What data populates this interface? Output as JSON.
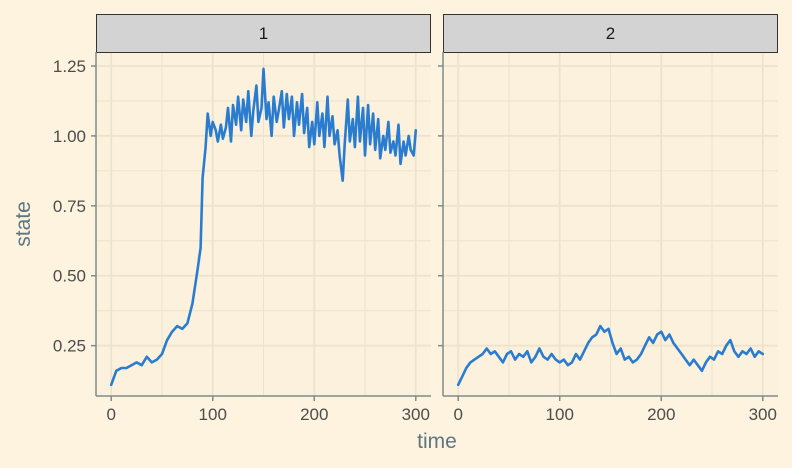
{
  "chart_data": {
    "type": "line",
    "layout": "facet",
    "xlabel": "time",
    "ylabel": "state",
    "xlim": [
      -15,
      315
    ],
    "ylim": [
      0.07,
      1.3
    ],
    "x_ticks": [
      0,
      100,
      200,
      300
    ],
    "x_tick_labels": [
      "0",
      "100",
      "200",
      "300"
    ],
    "y_ticks": [
      0.25,
      0.5,
      0.75,
      1.0,
      1.25
    ],
    "y_tick_labels": [
      "0.25",
      "0.50",
      "0.75",
      "1.00",
      "1.25"
    ],
    "grid": true,
    "legend": "none",
    "colors": {
      "background": "#fdf3df",
      "panel": "#fcf1dd",
      "grid": "#ede3cc",
      "strip": "#d3d3d3",
      "line": "#2a7cd0",
      "axis": "#7f8c8d"
    },
    "panels": [
      {
        "label": "1",
        "x": [
          0,
          5,
          10,
          15,
          20,
          25,
          30,
          35,
          40,
          45,
          50,
          55,
          60,
          65,
          70,
          75,
          80,
          85,
          88,
          90,
          93,
          95,
          98,
          100,
          103,
          105,
          108,
          110,
          113,
          115,
          118,
          120,
          123,
          125,
          128,
          130,
          133,
          135,
          138,
          140,
          143,
          145,
          148,
          150,
          153,
          155,
          158,
          160,
          163,
          165,
          168,
          170,
          173,
          175,
          178,
          180,
          183,
          185,
          188,
          190,
          193,
          195,
          198,
          200,
          203,
          205,
          208,
          210,
          213,
          215,
          218,
          220,
          223,
          225,
          228,
          230,
          233,
          235,
          238,
          240,
          243,
          245,
          248,
          250,
          253,
          255,
          258,
          260,
          263,
          265,
          268,
          270,
          273,
          275,
          278,
          280,
          283,
          285,
          288,
          290,
          293,
          295,
          298,
          300
        ],
        "y": [
          0.11,
          0.16,
          0.17,
          0.17,
          0.18,
          0.19,
          0.18,
          0.21,
          0.19,
          0.2,
          0.22,
          0.27,
          0.3,
          0.32,
          0.31,
          0.33,
          0.4,
          0.52,
          0.6,
          0.85,
          0.96,
          1.08,
          1.0,
          1.05,
          1.02,
          0.98,
          1.04,
          0.99,
          1.03,
          1.1,
          0.98,
          1.11,
          1.04,
          1.14,
          1.02,
          1.13,
          1.05,
          1.16,
          1.0,
          1.09,
          1.18,
          1.05,
          1.1,
          1.24,
          1.06,
          1.12,
          1.0,
          1.14,
          1.05,
          1.09,
          1.16,
          1.03,
          1.15,
          1.06,
          1.14,
          1.0,
          1.12,
          1.04,
          1.15,
          1.01,
          1.1,
          0.96,
          1.05,
          0.97,
          1.12,
          1.0,
          1.08,
          0.96,
          1.14,
          1.0,
          1.07,
          0.97,
          1.02,
          0.93,
          0.84,
          0.97,
          1.13,
          0.98,
          1.06,
          0.96,
          1.14,
          0.98,
          1.1,
          0.93,
          1.11,
          0.97,
          1.08,
          0.95,
          1.06,
          0.92,
          1.0,
          0.95,
          1.05,
          0.94,
          0.98,
          0.93,
          1.04,
          0.9,
          0.98,
          0.93,
          1.0,
          0.95,
          0.93,
          1.02
        ]
      },
      {
        "label": "2",
        "x": [
          0,
          4,
          8,
          12,
          16,
          20,
          24,
          28,
          32,
          36,
          40,
          44,
          48,
          52,
          56,
          60,
          64,
          68,
          72,
          76,
          80,
          84,
          88,
          92,
          96,
          100,
          104,
          108,
          112,
          116,
          120,
          124,
          128,
          132,
          136,
          140,
          144,
          148,
          152,
          156,
          160,
          164,
          168,
          172,
          176,
          180,
          184,
          188,
          192,
          196,
          200,
          204,
          208,
          212,
          216,
          220,
          224,
          228,
          232,
          236,
          240,
          244,
          248,
          252,
          256,
          260,
          264,
          268,
          272,
          276,
          280,
          284,
          288,
          292,
          296,
          300
        ],
        "y": [
          0.11,
          0.14,
          0.17,
          0.19,
          0.2,
          0.21,
          0.22,
          0.24,
          0.22,
          0.23,
          0.21,
          0.19,
          0.22,
          0.23,
          0.2,
          0.22,
          0.21,
          0.23,
          0.19,
          0.21,
          0.24,
          0.21,
          0.2,
          0.22,
          0.2,
          0.19,
          0.2,
          0.18,
          0.19,
          0.22,
          0.2,
          0.23,
          0.26,
          0.28,
          0.29,
          0.32,
          0.3,
          0.31,
          0.26,
          0.22,
          0.24,
          0.2,
          0.21,
          0.19,
          0.2,
          0.22,
          0.25,
          0.28,
          0.26,
          0.29,
          0.3,
          0.27,
          0.29,
          0.26,
          0.24,
          0.22,
          0.2,
          0.18,
          0.2,
          0.18,
          0.16,
          0.19,
          0.21,
          0.2,
          0.23,
          0.22,
          0.25,
          0.27,
          0.23,
          0.21,
          0.23,
          0.22,
          0.24,
          0.21,
          0.23,
          0.22
        ]
      }
    ]
  }
}
